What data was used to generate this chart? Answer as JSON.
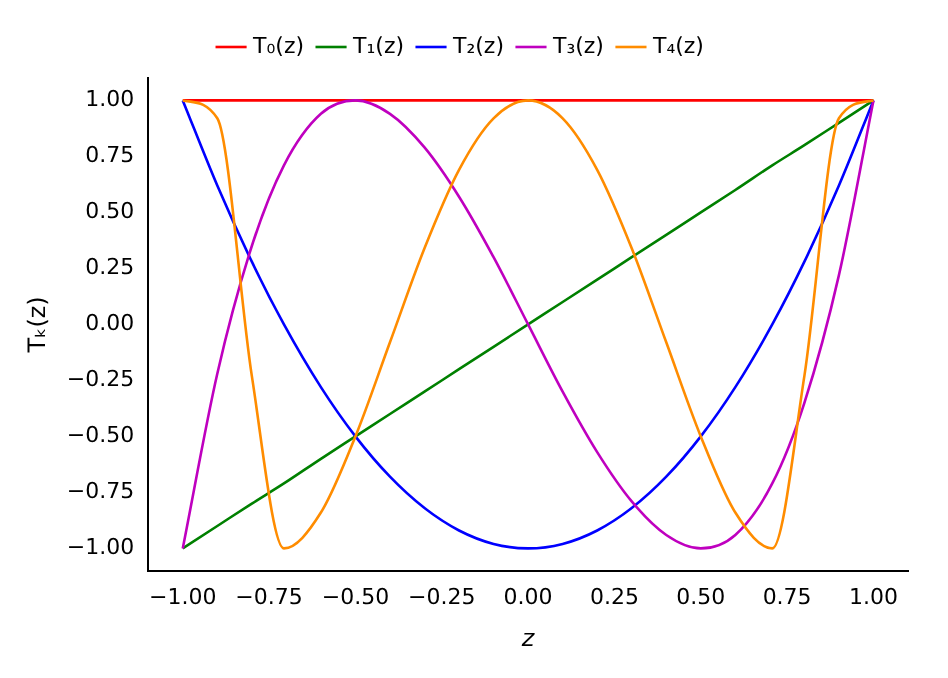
{
  "chart_data": {
    "type": "line",
    "xlabel": "z",
    "ylabel": "Tₖ(z)",
    "x": [
      -1,
      -0.9,
      -0.8,
      -0.707,
      -0.6,
      -0.5,
      -0.4,
      -0.3,
      -0.2,
      -0.1,
      0,
      0.1,
      0.2,
      0.3,
      0.4,
      0.5,
      0.6,
      0.707,
      0.8,
      0.9,
      1
    ],
    "series": [
      {
        "name": "T₀(z)",
        "color": "#ff0000",
        "values": [
          1,
          1,
          1,
          1,
          1,
          1,
          1,
          1,
          1,
          1,
          1,
          1,
          1,
          1,
          1,
          1,
          1,
          1,
          1,
          1,
          1
        ]
      },
      {
        "name": "T₁(z)",
        "color": "#008000",
        "values": [
          -1,
          -0.9,
          -0.8,
          -0.71,
          -0.6,
          -0.5,
          -0.4,
          -0.3,
          -0.2,
          -0.1,
          0,
          0.1,
          0.2,
          0.3,
          0.4,
          0.5,
          0.6,
          0.71,
          0.8,
          0.9,
          1
        ]
      },
      {
        "name": "T₂(z)",
        "color": "#0000ff",
        "values": [
          1,
          0.62,
          0.28,
          0,
          -0.28,
          -0.5,
          -0.68,
          -0.82,
          -0.92,
          -0.98,
          -1,
          -0.98,
          -0.92,
          -0.82,
          -0.68,
          -0.5,
          -0.28,
          0,
          0.28,
          0.62,
          1
        ]
      },
      {
        "name": "T₃(z)",
        "color": "#bf00bf",
        "values": [
          -1,
          -0.22,
          0.35,
          0.71,
          0.94,
          1,
          0.94,
          0.79,
          0.57,
          0.3,
          0,
          -0.3,
          -0.57,
          -0.79,
          -0.94,
          -1,
          -0.94,
          -0.71,
          -0.35,
          0.22,
          1
        ]
      },
      {
        "name": "T₄(z)",
        "color": "#ff8c00",
        "values": [
          1,
          0.92,
          -0.23,
          -1,
          -0.84,
          -0.5,
          -0.08,
          0.34,
          0.69,
          0.92,
          1,
          0.92,
          0.69,
          0.34,
          -0.08,
          -0.5,
          -0.84,
          -1,
          -0.23,
          0.92,
          1
        ]
      }
    ],
    "xlim": [
      -1.1,
      1.1
    ],
    "ylim": [
      -1.1,
      1.1
    ],
    "xticks": [
      {
        "value": -1,
        "label": "−1.00"
      },
      {
        "value": -0.75,
        "label": "−0.75"
      },
      {
        "value": -0.5,
        "label": "−0.50"
      },
      {
        "value": -0.25,
        "label": "−0.25"
      },
      {
        "value": 0,
        "label": "0.00"
      },
      {
        "value": 0.25,
        "label": "0.25"
      },
      {
        "value": 0.5,
        "label": "0.50"
      },
      {
        "value": 0.75,
        "label": "0.75"
      },
      {
        "value": 1,
        "label": "1.00"
      }
    ],
    "yticks": [
      {
        "value": -1,
        "label": "−1.00"
      },
      {
        "value": -0.75,
        "label": "−0.75"
      },
      {
        "value": -0.5,
        "label": "−0.50"
      },
      {
        "value": -0.25,
        "label": "−0.25"
      },
      {
        "value": 0,
        "label": "0.00"
      },
      {
        "value": 0.25,
        "label": "0.25"
      },
      {
        "value": 0.5,
        "label": "0.50"
      },
      {
        "value": 0.75,
        "label": "0.75"
      },
      {
        "value": 1,
        "label": "1.00"
      }
    ],
    "legend": "top",
    "grid": false,
    "marker": "none",
    "line_style": "solid"
  }
}
